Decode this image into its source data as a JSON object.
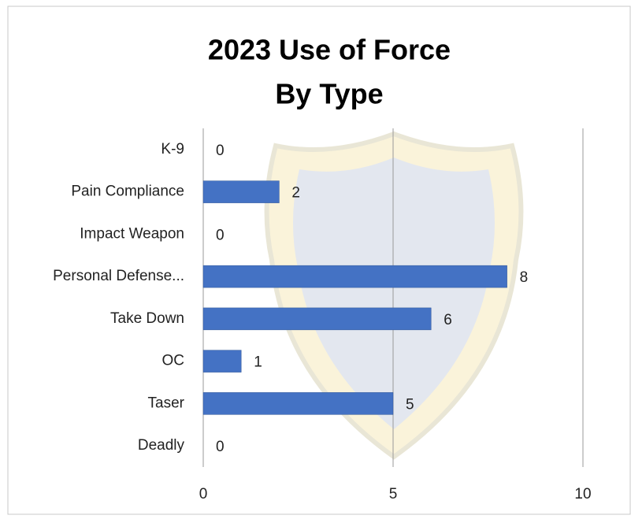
{
  "chart_data": {
    "type": "bar",
    "orientation": "horizontal",
    "title": [
      "2023 Use of Force",
      "By Type"
    ],
    "categories": [
      "K-9",
      "Pain Compliance",
      "Impact Weapon",
      "Personal Defense...",
      "Take Down",
      "OC",
      "Taser",
      "Deadly"
    ],
    "values": [
      0,
      2,
      0,
      8,
      6,
      1,
      5,
      0
    ],
    "color": "#4472c4",
    "xlim": [
      0,
      10
    ],
    "xticks": [
      0,
      5,
      10
    ],
    "grid": true
  }
}
